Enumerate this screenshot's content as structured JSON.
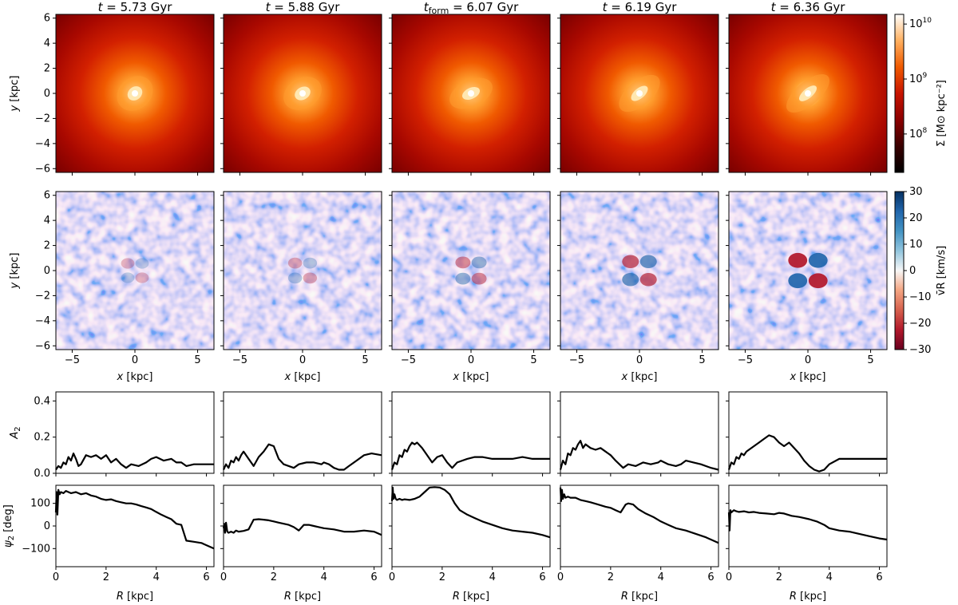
{
  "titles": [
    {
      "pre": "t",
      "sub": "",
      "rest": " = 5.73 Gyr"
    },
    {
      "pre": "t",
      "sub": "",
      "rest": " = 5.88 Gyr"
    },
    {
      "pre": "t",
      "sub": "form",
      "rest": " = 6.07 Gyr"
    },
    {
      "pre": "t",
      "sub": "",
      "rest": " = 6.19 Gyr"
    },
    {
      "pre": "t",
      "sub": "",
      "rest": " = 6.36 Gyr"
    }
  ],
  "labels": {
    "y_kpc": "y [kpc]",
    "x_kpc": "x [kpc]",
    "r_kpc": "R [kpc]",
    "a2": "A",
    "a2_sub": "2",
    "psi2": "ψ",
    "psi2_sub": "2",
    "psi2_unit": " [deg]",
    "cb_sigma": "Σ [M⊙ kpc⁻²]",
    "cb_vr": "v̄R [km/s]"
  },
  "colors": {
    "density_map": [
      "#000000",
      "#3a0000",
      "#8b0000",
      "#c81400",
      "#f05a00",
      "#ffb060",
      "#ffffff"
    ],
    "velocity_map": [
      "#67001f",
      "#b2182b",
      "#d6604d",
      "#f4a582",
      "#f7f7f7",
      "#92c5de",
      "#4393c3",
      "#2166ac",
      "#053061"
    ],
    "curve": "#000000"
  },
  "chart_data": [
    {
      "type": "heatmap",
      "name": "surface density maps",
      "panels": [
        "t = 5.73 Gyr",
        "t = 5.88 Gyr",
        "t_form = 6.07 Gyr",
        "t = 6.19 Gyr",
        "t = 6.36 Gyr"
      ],
      "xlim": [
        -6.3,
        6.3
      ],
      "ylim": [
        -6.3,
        6.3
      ],
      "yticks": [
        -6,
        -4,
        -2,
        0,
        2,
        4,
        6
      ],
      "colorbar": {
        "label": "Σ [M⊙ kpc⁻²]",
        "scale": "log",
        "range": [
          20000000,
          15000000000
        ],
        "ticks": [
          {
            "base": "10",
            "exp": "8"
          },
          {
            "base": "10",
            "exp": "9"
          },
          {
            "base": "10",
            "exp": "10"
          }
        ]
      },
      "bar_angle_deg": [
        130,
        120,
        115,
        130,
        130
      ],
      "bar_elongation": [
        1.1,
        1.15,
        1.3,
        1.4,
        1.5
      ]
    },
    {
      "type": "heatmap",
      "name": "mean radial velocity maps",
      "xlim": [
        -6.3,
        6.3
      ],
      "ylim": [
        -6.3,
        6.3
      ],
      "xticks": [
        -5,
        0,
        5
      ],
      "yticks": [
        -6,
        -4,
        -2,
        0,
        2,
        4,
        6
      ],
      "xlabel": "x [kpc]",
      "ylabel": "y [kpc]",
      "colorbar": {
        "label": "v̄R [km/s]",
        "range": [
          -30,
          30
        ],
        "ticks": [
          -30,
          -20,
          -10,
          0,
          10,
          20,
          30
        ]
      },
      "quadrupole_amplitude_kms": [
        8,
        10,
        14,
        20,
        28
      ]
    },
    {
      "type": "line",
      "name": "A2 profiles",
      "ylabel": "A2",
      "xlim": [
        0,
        6.3
      ],
      "ylim": [
        0,
        0.45
      ],
      "yticks": [
        0.0,
        0.2,
        0.4
      ],
      "series": [
        {
          "x": [
            0,
            0.1,
            0.2,
            0.3,
            0.4,
            0.5,
            0.6,
            0.7,
            0.8,
            0.9,
            1.0,
            1.2,
            1.4,
            1.6,
            1.8,
            2.0,
            2.2,
            2.4,
            2.6,
            2.8,
            3.0,
            3.3,
            3.6,
            3.8,
            4.0,
            4.3,
            4.6,
            4.8,
            5.0,
            5.2,
            5.5,
            5.8,
            6.3
          ],
          "y": [
            0.02,
            0.04,
            0.03,
            0.06,
            0.05,
            0.09,
            0.07,
            0.11,
            0.08,
            0.04,
            0.05,
            0.1,
            0.09,
            0.1,
            0.08,
            0.1,
            0.06,
            0.08,
            0.05,
            0.03,
            0.05,
            0.04,
            0.06,
            0.08,
            0.09,
            0.07,
            0.08,
            0.06,
            0.06,
            0.04,
            0.05,
            0.05,
            0.05
          ]
        },
        {
          "x": [
            0,
            0.1,
            0.2,
            0.3,
            0.4,
            0.5,
            0.6,
            0.7,
            0.8,
            1.0,
            1.2,
            1.4,
            1.6,
            1.8,
            2.0,
            2.2,
            2.4,
            2.6,
            2.8,
            3.0,
            3.3,
            3.6,
            3.9,
            4.0,
            4.2,
            4.4,
            4.6,
            4.8,
            5.0,
            5.3,
            5.6,
            5.9,
            6.3
          ],
          "y": [
            0.02,
            0.05,
            0.03,
            0.07,
            0.06,
            0.09,
            0.07,
            0.1,
            0.12,
            0.08,
            0.04,
            0.09,
            0.12,
            0.16,
            0.15,
            0.08,
            0.05,
            0.04,
            0.03,
            0.05,
            0.06,
            0.06,
            0.05,
            0.06,
            0.05,
            0.03,
            0.02,
            0.02,
            0.04,
            0.07,
            0.1,
            0.11,
            0.1
          ]
        },
        {
          "x": [
            0,
            0.1,
            0.2,
            0.3,
            0.4,
            0.5,
            0.6,
            0.7,
            0.8,
            0.9,
            1.0,
            1.2,
            1.4,
            1.6,
            1.8,
            2.0,
            2.2,
            2.4,
            2.6,
            2.8,
            3.0,
            3.3,
            3.6,
            4.0,
            4.4,
            4.8,
            5.2,
            5.6,
            6.0,
            6.3
          ],
          "y": [
            0.02,
            0.06,
            0.05,
            0.1,
            0.09,
            0.13,
            0.12,
            0.15,
            0.17,
            0.16,
            0.17,
            0.14,
            0.1,
            0.06,
            0.09,
            0.1,
            0.06,
            0.03,
            0.06,
            0.07,
            0.08,
            0.09,
            0.09,
            0.08,
            0.08,
            0.08,
            0.09,
            0.08,
            0.08,
            0.08
          ]
        },
        {
          "x": [
            0,
            0.1,
            0.2,
            0.3,
            0.4,
            0.5,
            0.6,
            0.7,
            0.8,
            0.9,
            1.0,
            1.2,
            1.4,
            1.6,
            1.8,
            2.0,
            2.2,
            2.5,
            2.7,
            3.0,
            3.3,
            3.6,
            3.9,
            4.0,
            4.3,
            4.6,
            4.8,
            5.0,
            5.3,
            5.6,
            6.0,
            6.3
          ],
          "y": [
            0.02,
            0.07,
            0.05,
            0.11,
            0.1,
            0.14,
            0.13,
            0.16,
            0.18,
            0.14,
            0.16,
            0.14,
            0.13,
            0.14,
            0.12,
            0.1,
            0.07,
            0.03,
            0.05,
            0.04,
            0.06,
            0.05,
            0.06,
            0.07,
            0.05,
            0.04,
            0.05,
            0.07,
            0.06,
            0.05,
            0.03,
            0.02
          ]
        },
        {
          "x": [
            0,
            0.1,
            0.2,
            0.3,
            0.4,
            0.5,
            0.6,
            0.7,
            0.8,
            1.0,
            1.2,
            1.4,
            1.6,
            1.8,
            2.0,
            2.2,
            2.4,
            2.6,
            2.8,
            3.0,
            3.2,
            3.4,
            3.6,
            3.8,
            4.0,
            4.4,
            4.8,
            5.2,
            5.6,
            6.0,
            6.3
          ],
          "y": [
            0.02,
            0.06,
            0.05,
            0.09,
            0.08,
            0.11,
            0.1,
            0.12,
            0.13,
            0.15,
            0.17,
            0.19,
            0.21,
            0.2,
            0.17,
            0.15,
            0.17,
            0.14,
            0.11,
            0.07,
            0.04,
            0.02,
            0.01,
            0.02,
            0.05,
            0.08,
            0.08,
            0.08,
            0.08,
            0.08,
            0.08
          ]
        }
      ]
    },
    {
      "type": "line",
      "name": "psi2 profiles",
      "ylabel": "ψ2 [deg]",
      "xlabel": "R [kpc]",
      "xlim": [
        0,
        6.3
      ],
      "ylim": [
        -180,
        180
      ],
      "xticks": [
        0,
        2,
        4,
        6
      ],
      "yticks": [
        -100,
        0,
        100
      ],
      "series": [
        {
          "x": [
            0,
            0.03,
            0.06,
            0.1,
            0.15,
            0.2,
            0.3,
            0.4,
            0.5,
            0.6,
            0.8,
            1.0,
            1.2,
            1.4,
            1.6,
            1.8,
            2.0,
            2.2,
            2.4,
            2.6,
            2.8,
            3.0,
            3.2,
            3.4,
            3.6,
            3.8,
            4.0,
            4.2,
            4.4,
            4.6,
            4.8,
            5.0,
            5.2,
            5.5,
            5.8,
            6.0,
            6.3
          ],
          "y": [
            60,
            150,
            50,
            160,
            140,
            150,
            145,
            155,
            150,
            145,
            150,
            140,
            145,
            135,
            130,
            120,
            115,
            118,
            110,
            105,
            100,
            100,
            95,
            88,
            82,
            75,
            62,
            50,
            40,
            30,
            10,
            5,
            -65,
            -70,
            -75,
            -85,
            -100
          ]
        },
        {
          "x": [
            0,
            0.03,
            0.06,
            0.1,
            0.15,
            0.2,
            0.3,
            0.4,
            0.5,
            0.6,
            0.8,
            1.0,
            1.2,
            1.4,
            1.6,
            1.8,
            2.0,
            2.2,
            2.4,
            2.6,
            2.8,
            3.0,
            3.2,
            3.4,
            3.6,
            3.8,
            4.0,
            4.4,
            4.8,
            5.2,
            5.6,
            6.0,
            6.3
          ],
          "y": [
            -10,
            10,
            -30,
            15,
            -25,
            -30,
            -25,
            -30,
            -20,
            -25,
            -22,
            -15,
            28,
            30,
            28,
            25,
            20,
            15,
            10,
            5,
            -5,
            -20,
            5,
            5,
            0,
            -5,
            -10,
            -15,
            -25,
            -25,
            -20,
            -25,
            -40
          ]
        },
        {
          "x": [
            0,
            0.03,
            0.06,
            0.1,
            0.15,
            0.2,
            0.3,
            0.4,
            0.5,
            0.7,
            0.9,
            1.1,
            1.3,
            1.5,
            1.7,
            1.9,
            2.1,
            2.3,
            2.5,
            2.7,
            3.0,
            3.3,
            3.6,
            4.0,
            4.4,
            4.8,
            5.2,
            5.6,
            6.0,
            6.3
          ],
          "y": [
            110,
            170,
            120,
            140,
            120,
            115,
            120,
            115,
            118,
            115,
            120,
            130,
            150,
            170,
            172,
            170,
            160,
            140,
            100,
            70,
            50,
            35,
            20,
            5,
            -10,
            -20,
            -25,
            -30,
            -40,
            -50
          ]
        },
        {
          "x": [
            0,
            0.03,
            0.06,
            0.1,
            0.15,
            0.2,
            0.3,
            0.4,
            0.6,
            0.8,
            1.0,
            1.2,
            1.5,
            1.8,
            2.0,
            2.2,
            2.4,
            2.6,
            2.7,
            2.9,
            3.1,
            3.4,
            3.7,
            4.0,
            4.3,
            4.6,
            5.0,
            5.4,
            5.8,
            6.3
          ],
          "y": [
            170,
            110,
            160,
            120,
            140,
            125,
            130,
            125,
            125,
            115,
            110,
            105,
            95,
            85,
            80,
            70,
            60,
            95,
            100,
            95,
            75,
            55,
            40,
            20,
            5,
            -10,
            -20,
            -35,
            -50,
            -75
          ]
        },
        {
          "x": [
            0,
            0.03,
            0.06,
            0.1,
            0.15,
            0.2,
            0.3,
            0.4,
            0.6,
            0.8,
            1.0,
            1.2,
            1.5,
            1.8,
            2.0,
            2.2,
            2.5,
            2.8,
            3.0,
            3.2,
            3.5,
            3.8,
            4.0,
            4.4,
            4.8,
            5.2,
            5.6,
            6.0,
            6.3
          ],
          "y": [
            60,
            -20,
            70,
            60,
            65,
            70,
            65,
            62,
            65,
            60,
            62,
            58,
            55,
            52,
            58,
            55,
            45,
            40,
            35,
            30,
            20,
            5,
            -10,
            -20,
            -25,
            -35,
            -45,
            -55,
            -60
          ]
        }
      ]
    }
  ]
}
